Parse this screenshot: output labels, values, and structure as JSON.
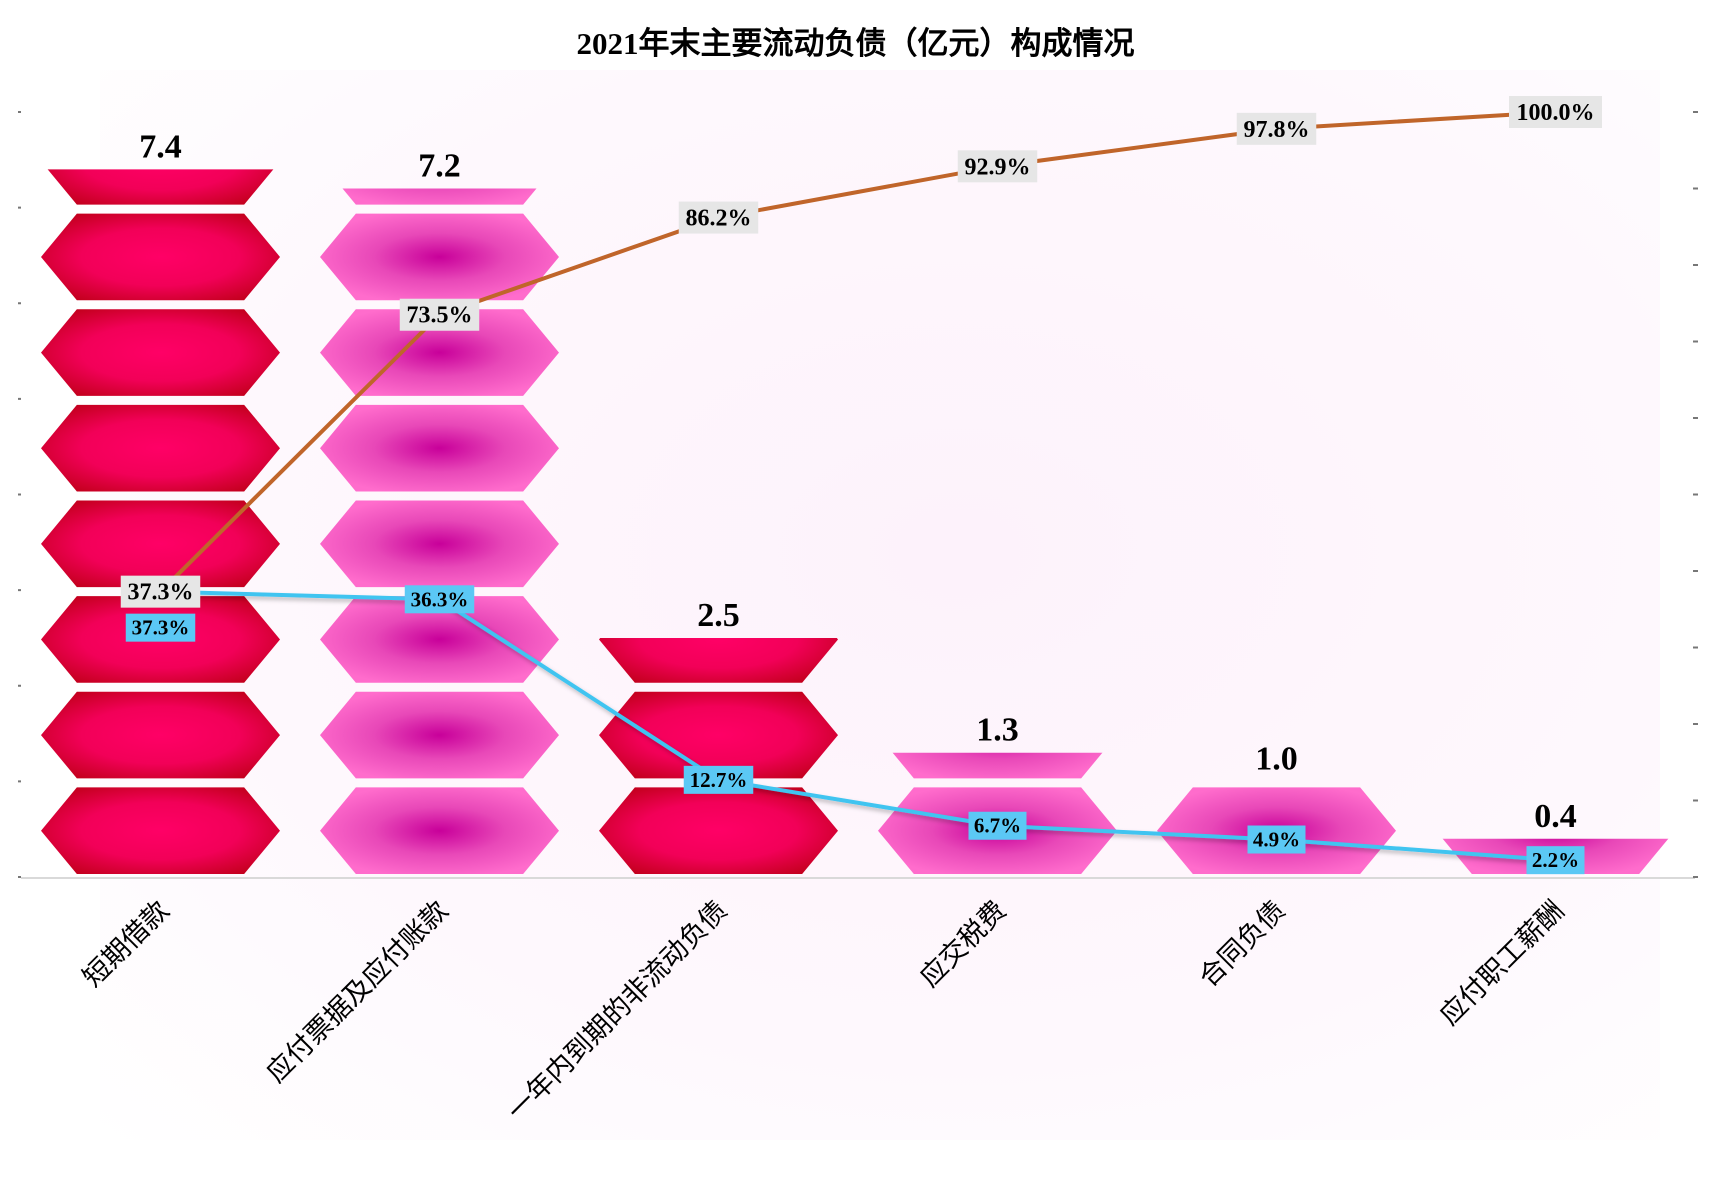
{
  "chart_data": {
    "type": "bar",
    "title": "2021年末主要流动负债（亿元）构成情况",
    "categories": [
      "短期借款",
      "应付票据及应付账款",
      "一年内到期的非流动负债",
      "应交税费",
      "合同负债",
      "应付职工薪酬"
    ],
    "series": [
      {
        "type": "bar",
        "values": [
          7.4,
          7.2,
          2.5,
          1.3,
          1.0,
          0.4
        ],
        "value_labels": [
          "7.4",
          "7.2",
          "2.5",
          "1.3",
          "1.0",
          "0.4"
        ],
        "axis": "left"
      },
      {
        "type": "line",
        "values": [
          37.3,
          36.3,
          12.7,
          6.7,
          4.9,
          2.2
        ],
        "value_labels": [
          "37.3%",
          "36.3%",
          "12.7%",
          "6.7%",
          "4.9%",
          "2.2%"
        ],
        "axis": "right",
        "color": "#3fc4f0"
      },
      {
        "type": "line",
        "values": [
          37.3,
          73.5,
          86.2,
          92.9,
          97.8,
          100.0
        ],
        "value_labels": [
          "37.3%",
          "73.5%",
          "86.2%",
          "92.9%",
          "97.8%",
          "100.0%"
        ],
        "axis": "right",
        "color": "#c0652a"
      }
    ],
    "ylim": [
      0,
      8
    ],
    "y2lim": [
      0,
      100
    ],
    "bar_colors": [
      "#e0003a",
      "#ff66cc",
      "#e0003a",
      "#ff66cc",
      "#ff66cc",
      "#ff66cc"
    ],
    "grid": false,
    "legend": "none"
  }
}
